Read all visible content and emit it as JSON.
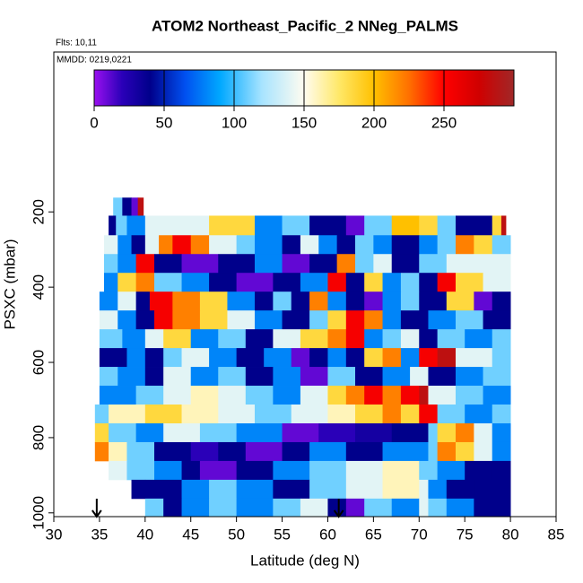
{
  "chart_data": {
    "type": "curtain",
    "title": "ATOM2 Northeast_Pacific_2 NNeg_PALMS",
    "flights": "Flts: 10,11",
    "dates": "MMDD: 0219,0221",
    "x_label": "Latitude (deg N)",
    "y_label": "PSXC (mbar)",
    "xlim": [
      30,
      85
    ],
    "xticks": [
      30,
      35,
      40,
      45,
      50,
      55,
      60,
      65,
      70,
      75,
      80,
      85
    ],
    "ylim": [
      1010,
      -225
    ],
    "yticks": [
      200,
      400,
      600,
      800,
      1000
    ],
    "clim": [
      0,
      300
    ],
    "cticks": [
      0,
      50,
      100,
      150,
      200,
      250
    ],
    "colorscale": [
      {
        "value": 0,
        "color": "#9a10f0"
      },
      {
        "value": 20,
        "color": "#2a00b8"
      },
      {
        "value": 40,
        "color": "#00008b"
      },
      {
        "value": 65,
        "color": "#0050f0"
      },
      {
        "value": 90,
        "color": "#00a8ff"
      },
      {
        "value": 120,
        "color": "#a8e4ff"
      },
      {
        "value": 150,
        "color": "#fffcf0"
      },
      {
        "value": 175,
        "color": "#ffe868"
      },
      {
        "value": 200,
        "color": "#ffc000"
      },
      {
        "value": 225,
        "color": "#ff7000"
      },
      {
        "value": 250,
        "color": "#ff0000"
      },
      {
        "value": 275,
        "color": "#d00000"
      },
      {
        "value": 300,
        "color": "#a02828"
      }
    ],
    "markers_x": [
      34.7,
      61.2
    ],
    "rows": [
      {
        "p": [
          162,
          210
        ],
        "lat": [
          36.5,
          37.5,
          38.5,
          39.2,
          39.8
        ],
        "values": [
          110,
          40,
          10,
          285
        ]
      },
      {
        "p": [
          210,
          262
        ],
        "lat": [
          36,
          36.8,
          38,
          40,
          47,
          52,
          55,
          58,
          62,
          64,
          67,
          70,
          72,
          74,
          78,
          79,
          79.5
        ],
        "values": [
          40,
          110,
          80,
          140,
          185,
          80,
          110,
          40,
          10,
          110,
          200,
          185,
          110,
          40,
          185,
          285
        ]
      },
      {
        "p": [
          262,
          312
        ],
        "lat": [
          35.5,
          37,
          38.5,
          40,
          41.5,
          43,
          45,
          47,
          50,
          52,
          55,
          57,
          59,
          61,
          63,
          65,
          67,
          70,
          72,
          74,
          76,
          78,
          80
        ],
        "values": [
          140,
          80,
          40,
          140,
          220,
          255,
          220,
          140,
          110,
          80,
          40,
          140,
          80,
          40,
          110,
          80,
          40,
          80,
          110,
          220,
          185,
          110
        ]
      },
      {
        "p": [
          312,
          362
        ],
        "lat": [
          35.5,
          37,
          39,
          41,
          44,
          48,
          52,
          55,
          58,
          61,
          63,
          65,
          67,
          70,
          73,
          76,
          80
        ],
        "values": [
          110,
          80,
          255,
          40,
          10,
          40,
          80,
          10,
          40,
          220,
          110,
          140,
          40,
          110,
          140,
          140
        ]
      },
      {
        "p": [
          362,
          412
        ],
        "lat": [
          35.5,
          37,
          39,
          41,
          44,
          47,
          50,
          54,
          57,
          60,
          62,
          64,
          66,
          68,
          70,
          72,
          74,
          77,
          80
        ],
        "values": [
          80,
          185,
          220,
          110,
          80,
          40,
          10,
          40,
          80,
          255,
          40,
          185,
          80,
          110,
          40,
          255,
          185,
          140
        ]
      },
      {
        "p": [
          412,
          462
        ],
        "lat": [
          35,
          37,
          39,
          40.5,
          43,
          46,
          49,
          52,
          54,
          56,
          58,
          60,
          62,
          64,
          66,
          68,
          70,
          73,
          76,
          78,
          80
        ],
        "values": [
          80,
          140,
          40,
          255,
          220,
          185,
          80,
          40,
          110,
          40,
          220,
          80,
          40,
          10,
          80,
          110,
          40,
          185,
          10,
          40
        ]
      },
      {
        "p": [
          462,
          512
        ],
        "lat": [
          35,
          37,
          39,
          41,
          43,
          46,
          49,
          52,
          55,
          58,
          60,
          62,
          64,
          66,
          68,
          71,
          74,
          77,
          80
        ],
        "values": [
          140,
          80,
          40,
          255,
          220,
          185,
          140,
          80,
          40,
          110,
          185,
          255,
          220,
          80,
          40,
          80,
          110,
          40
        ]
      },
      {
        "p": [
          512,
          562
        ],
        "lat": [
          35,
          37.5,
          40,
          42,
          45,
          48,
          51,
          54,
          57,
          60,
          62,
          64,
          66,
          68,
          70,
          72,
          75,
          78,
          80
        ],
        "values": [
          110,
          80,
          140,
          185,
          80,
          110,
          40,
          140,
          185,
          220,
          255,
          80,
          110,
          140,
          40,
          110,
          80,
          110
        ]
      },
      {
        "p": [
          562,
          612
        ],
        "lat": [
          35,
          38,
          40,
          42,
          44,
          47,
          50,
          53,
          56,
          58,
          60,
          62,
          64,
          66,
          68,
          70,
          72,
          74,
          78,
          80
        ],
        "values": [
          40,
          80,
          40,
          110,
          140,
          80,
          40,
          80,
          10,
          40,
          80,
          40,
          185,
          220,
          80,
          255,
          285,
          140,
          110
        ]
      },
      {
        "p": [
          612,
          662
        ],
        "lat": [
          35,
          37,
          40,
          42,
          45,
          48,
          51,
          54,
          57,
          60,
          63,
          66,
          69,
          71,
          74,
          77,
          80
        ],
        "values": [
          110,
          80,
          40,
          140,
          80,
          110,
          40,
          80,
          10,
          110,
          40,
          80,
          140,
          40,
          80,
          110
        ]
      },
      {
        "p": [
          662,
          712
        ],
        "lat": [
          35,
          39,
          42,
          45,
          48,
          51,
          54,
          57,
          60,
          62,
          64,
          66,
          68,
          70,
          71,
          74,
          77,
          80
        ],
        "values": [
          80,
          110,
          140,
          160,
          140,
          110,
          80,
          140,
          185,
          220,
          255,
          220,
          255,
          285,
          140,
          110,
          80
        ]
      },
      {
        "p": [
          712,
          762
        ],
        "lat": [
          34.5,
          36,
          40,
          44,
          48,
          52,
          56,
          60,
          63,
          66,
          68,
          70,
          72,
          75,
          78,
          80
        ],
        "values": [
          110,
          160,
          185,
          160,
          140,
          110,
          140,
          160,
          185,
          220,
          185,
          255,
          110,
          80,
          110
        ]
      },
      {
        "p": [
          762,
          812
        ],
        "lat": [
          34.5,
          36,
          39,
          42,
          46,
          50,
          55,
          59,
          63,
          67,
          71,
          72,
          74,
          76,
          78,
          80
        ],
        "values": [
          185,
          110,
          80,
          140,
          110,
          80,
          10,
          20,
          30,
          40,
          110,
          185,
          220,
          140,
          80
        ]
      },
      {
        "p": [
          812,
          862
        ],
        "lat": [
          34.5,
          36,
          38,
          41,
          45,
          48,
          51,
          55,
          58,
          62,
          66,
          71,
          72,
          74,
          76,
          78,
          80
        ],
        "values": [
          220,
          160,
          110,
          40,
          20,
          40,
          10,
          40,
          80,
          40,
          80,
          110,
          220,
          185,
          140,
          80
        ]
      },
      {
        "p": [
          862,
          912
        ],
        "lat": [
          36,
          38,
          41,
          44,
          46,
          50,
          54,
          58,
          62,
          66,
          70,
          72,
          75,
          78,
          80
        ],
        "values": [
          140,
          110,
          80,
          40,
          10,
          40,
          80,
          110,
          140,
          160,
          110,
          80,
          40,
          40
        ]
      },
      {
        "p": [
          912,
          962
        ],
        "lat": [
          38.5,
          40,
          44,
          47,
          50,
          54,
          58,
          62,
          66,
          70,
          71,
          73,
          76,
          80
        ],
        "values": [
          40,
          40,
          80,
          110,
          80,
          40,
          110,
          140,
          160,
          140,
          80,
          40,
          40
        ]
      },
      {
        "p": [
          962,
          1010
        ],
        "lat": [
          40,
          42,
          44,
          47,
          50,
          54,
          57,
          60,
          62,
          64,
          67,
          70,
          71,
          73,
          76,
          80
        ],
        "values": [
          110,
          40,
          80,
          110,
          80,
          110,
          140,
          40,
          10,
          110,
          80,
          140,
          110,
          80,
          40
        ]
      }
    ]
  }
}
